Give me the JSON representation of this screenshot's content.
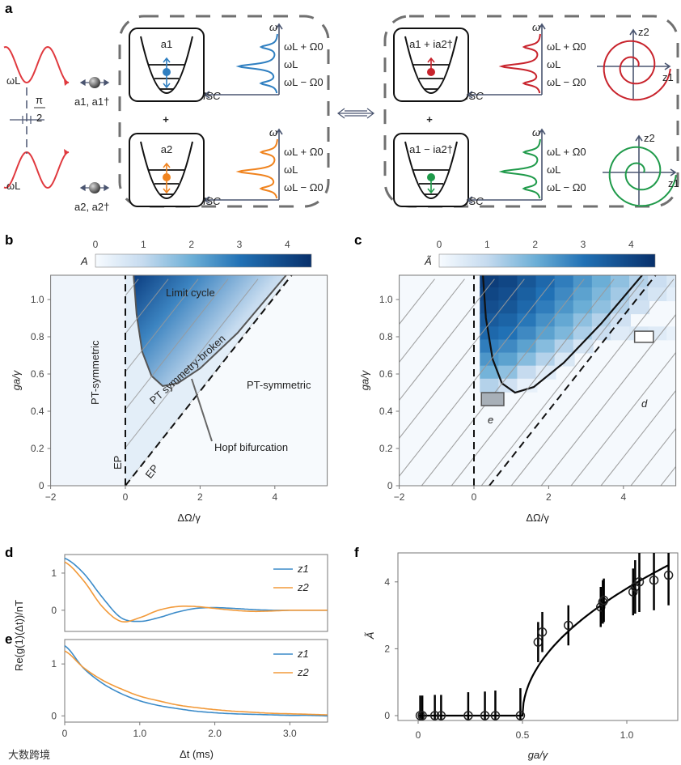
{
  "figure": {
    "panel_letters": [
      "a",
      "b",
      "c",
      "d",
      "e",
      "f"
    ],
    "watermark": "大数跨境"
  },
  "panel_a": {
    "laser_label": "ωL",
    "phase_label_num": "π",
    "phase_label_den": "2",
    "mode1_ops": "a1, a1†",
    "mode2_ops": "a2, a2†",
    "box_labels": [
      "a1",
      "a2",
      "a1 + ia2†",
      "a1 − ia2†"
    ],
    "plus": "+",
    "spectrum_axis_y": "ω",
    "spectrum_axis_x": "ISC",
    "spectrum_levels": [
      "ωL + Ω0",
      "ωL",
      "ωL − Ω0"
    ],
    "phase_axes": [
      "z1",
      "z2"
    ],
    "colors": {
      "laser": "#e0393e",
      "mode1": "#2f7fc1",
      "mode2": "#f0831e",
      "sum": "#c8232c",
      "diff": "#1f9a4a",
      "axis": "#4a5570",
      "dash": "#707070"
    }
  },
  "chart_data": [
    {
      "panel": "b",
      "type": "heatmap",
      "xlabel": "ΔΩ/γ",
      "ylabel": "ga/γ",
      "xlim": [
        -2,
        5.43
      ],
      "ylim": [
        0,
        1.13
      ],
      "xticks": [
        "-2",
        "0",
        "2",
        "4"
      ],
      "yticks": [
        "0",
        "0.2",
        "0.4",
        "0.6",
        "0.8",
        "1.0"
      ],
      "colorbar": {
        "label": "A",
        "range": [
          0,
          4.5
        ],
        "ticks": [
          "0",
          "1",
          "2",
          "3",
          "4"
        ]
      },
      "annotations": [
        "Limit cycle",
        "PT symmetry-broken",
        "PT-symmetric",
        "PT-symmetric",
        "Hopf bifurcation",
        "EP",
        "EP"
      ],
      "hopf_curve": [
        [
          0.22,
          1.13
        ],
        [
          0.3,
          0.92
        ],
        [
          0.45,
          0.72
        ],
        [
          0.7,
          0.59
        ],
        [
          1.0,
          0.535
        ],
        [
          1.4,
          0.55
        ],
        [
          2.0,
          0.63
        ],
        [
          3.0,
          0.82
        ],
        [
          4.3,
          1.13
        ]
      ],
      "ep_lines": [
        [
          [
            0,
            0
          ],
          [
            0,
            1.13
          ]
        ],
        [
          [
            0,
            0
          ],
          [
            4.35,
            1.11
          ]
        ]
      ]
    },
    {
      "panel": "c",
      "type": "heatmap",
      "xlabel": "ΔΩ/γ",
      "ylabel": "ga/γ",
      "xlim": [
        -2,
        5.43
      ],
      "ylim": [
        0,
        1.13
      ],
      "xticks": [
        "-2",
        "0",
        "2",
        "4"
      ],
      "yticks": [
        "0",
        "0.2",
        "0.4",
        "0.6",
        "0.8",
        "1.0"
      ],
      "colorbar": {
        "label": "Ã",
        "range": [
          0,
          4.5
        ],
        "ticks": [
          "0",
          "1",
          "2",
          "3",
          "4"
        ]
      },
      "grid_x_start": [
        0.2,
        0.7,
        1.2,
        1.7,
        2.2,
        2.7,
        3.2,
        3.7,
        4.2,
        4.7,
        5.2
      ],
      "grid_y": [
        1.1,
        1.03,
        0.96,
        0.89,
        0.82,
        0.75,
        0.68,
        0.61,
        0.54
      ],
      "values": [
        [
          4.2,
          4.0,
          3.6,
          3.2,
          2.8,
          2.4,
          2.0,
          1.6,
          1.2,
          0.9,
          0.6
        ],
        [
          4.0,
          3.8,
          3.4,
          3.0,
          2.6,
          2.2,
          1.8,
          1.4,
          1.0,
          0.7,
          0.4
        ],
        [
          3.8,
          3.6,
          3.2,
          2.8,
          2.4,
          2.0,
          1.6,
          1.2,
          0.8,
          0,
          0
        ],
        [
          3.5,
          3.3,
          2.9,
          2.5,
          2.1,
          1.6,
          1.2,
          0.8,
          0,
          0,
          0
        ],
        [
          3.2,
          3.0,
          2.6,
          2.2,
          1.8,
          1.3,
          0.9,
          0.5,
          0.6,
          0.5,
          0.3
        ],
        [
          2.8,
          2.6,
          2.2,
          1.7,
          1.2,
          0.7,
          0,
          0,
          0,
          0,
          0
        ],
        [
          2.4,
          2.2,
          1.7,
          1.2,
          0.6,
          0,
          0,
          0,
          0,
          0,
          0
        ],
        [
          1.9,
          1.6,
          1.0,
          0.5,
          0,
          0,
          0,
          0,
          0,
          0,
          0
        ],
        [
          1.2,
          0.8,
          0.3,
          0,
          0,
          0,
          0,
          0,
          0,
          0,
          0
        ]
      ],
      "boundary_curve": [
        [
          0.24,
          1.13
        ],
        [
          0.32,
          0.9
        ],
        [
          0.5,
          0.68
        ],
        [
          0.75,
          0.55
        ],
        [
          1.1,
          0.5
        ],
        [
          1.6,
          0.53
        ],
        [
          2.4,
          0.66
        ],
        [
          3.4,
          0.87
        ],
        [
          4.5,
          1.13
        ]
      ],
      "markers": [
        {
          "label": "e",
          "x": [
            0.2,
            0.8
          ],
          "y": [
            0.43,
            0.5
          ]
        },
        {
          "label": "d",
          "x": [
            4.3,
            4.8
          ],
          "y": [
            0.77,
            0.83
          ]
        }
      ]
    },
    {
      "panel": "d",
      "type": "line",
      "xlim": [
        0,
        3.5
      ],
      "ylim": [
        -0.57,
        1.5
      ],
      "yticks": [
        "0",
        "1"
      ],
      "x": [
        0,
        0.25,
        0.5,
        0.75,
        1.0,
        1.25,
        1.5,
        1.75,
        2.0,
        2.25,
        2.5,
        2.75,
        3.0,
        3.25,
        3.5
      ],
      "series": [
        {
          "name": "z1",
          "color": "#3b8bc9",
          "values": [
            1.4,
            1.0,
            0.35,
            -0.2,
            -0.3,
            -0.2,
            -0.05,
            0.05,
            0.07,
            0.05,
            0.02,
            0,
            0,
            0,
            0
          ]
        },
        {
          "name": "z2",
          "color": "#f29a3a",
          "values": [
            1.3,
            0.8,
            0.1,
            -0.3,
            -0.2,
            0.0,
            0.1,
            0.1,
            0.05,
            0,
            -0.03,
            -0.02,
            0,
            0,
            0
          ]
        }
      ]
    },
    {
      "panel": "e",
      "type": "line",
      "xlim": [
        0,
        3.5
      ],
      "ylim": [
        -0.12,
        1.47
      ],
      "xlabel": "Δt (ms)",
      "ylabel": "Re(g(1)(Δt))/nT",
      "xticks": [
        "0",
        "1.0",
        "2.0",
        "3.0"
      ],
      "yticks": [
        "0",
        "1"
      ],
      "x": [
        0,
        0.25,
        0.5,
        0.75,
        1.0,
        1.25,
        1.5,
        1.75,
        2.0,
        2.25,
        2.5,
        2.75,
        3.0,
        3.25,
        3.5
      ],
      "series": [
        {
          "name": "z1",
          "color": "#3b8bc9",
          "values": [
            1.35,
            0.92,
            0.63,
            0.43,
            0.29,
            0.2,
            0.14,
            0.09,
            0.06,
            0.04,
            0.03,
            0.02,
            0.01,
            0.01,
            0.0
          ]
        },
        {
          "name": "z2",
          "color": "#f29a3a",
          "values": [
            1.25,
            0.93,
            0.69,
            0.52,
            0.38,
            0.29,
            0.21,
            0.16,
            0.12,
            0.09,
            0.07,
            0.05,
            0.04,
            0.03,
            0.02
          ]
        }
      ]
    },
    {
      "panel": "f",
      "type": "scatter",
      "xlabel": "ga/γ",
      "ylabel": "Ã",
      "xlim": [
        -0.08,
        1.26
      ],
      "ylim": [
        -0.15,
        4.8
      ],
      "xticks": [
        "0",
        "0.5",
        "1.0"
      ],
      "yticks": [
        "0",
        "2",
        "4"
      ],
      "points": [
        {
          "x": 0.01,
          "y": 0,
          "err": 0.6
        },
        {
          "x": 0.02,
          "y": 0,
          "err": 0.6
        },
        {
          "x": 0.08,
          "y": 0,
          "err": 0.62
        },
        {
          "x": 0.11,
          "y": 0,
          "err": 0.62
        },
        {
          "x": 0.24,
          "y": 0,
          "err": 0.7
        },
        {
          "x": 0.32,
          "y": 0,
          "err": 0.72
        },
        {
          "x": 0.37,
          "y": 0,
          "err": 0.75
        },
        {
          "x": 0.49,
          "y": 0,
          "err": 0.82
        },
        {
          "x": 0.575,
          "y": 2.2,
          "err": 0.6
        },
        {
          "x": 0.595,
          "y": 2.5,
          "err": 0.6
        },
        {
          "x": 0.72,
          "y": 2.7,
          "err": 0.6
        },
        {
          "x": 0.875,
          "y": 3.25,
          "err": 0.6
        },
        {
          "x": 0.885,
          "y": 3.4,
          "err": 0.65
        },
        {
          "x": 0.89,
          "y": 3.45,
          "err": 0.65
        },
        {
          "x": 1.03,
          "y": 3.7,
          "err": 0.7
        },
        {
          "x": 1.04,
          "y": 3.85,
          "err": 0.8
        },
        {
          "x": 1.06,
          "y": 4.0,
          "err": 0.9
        },
        {
          "x": 1.13,
          "y": 4.05,
          "err": 0.9
        },
        {
          "x": 1.2,
          "y": 4.2,
          "err": 0.9
        }
      ],
      "fit": {
        "threshold": 0.5,
        "coefficient": 5.38,
        "form": "A = k·sqrt(g − g_th)"
      }
    }
  ]
}
